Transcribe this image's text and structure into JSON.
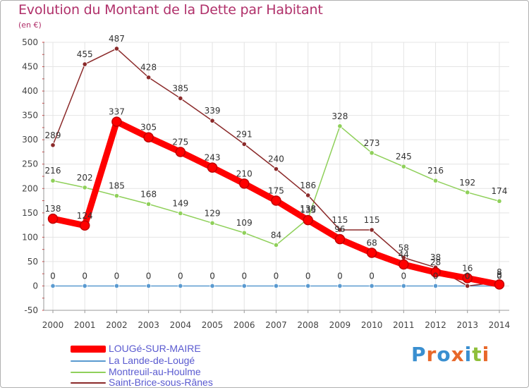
{
  "title": "Evolution du Montant de la Dette par Habitant",
  "subtitle": "(en €)",
  "brand": {
    "text": "Proxiti",
    "colors": [
      "#3a8fd0",
      "#e8682a",
      "#3a8fd0",
      "#e8682a",
      "#3a8fd0",
      "#8fbf3a",
      "#e8682a"
    ]
  },
  "chart_data": {
    "type": "line",
    "title": "Evolution du Montant de la Dette par Habitant",
    "ylabel": "(en €)",
    "xlabel": "",
    "ylim": [
      -50,
      500
    ],
    "yticks": [
      "-50",
      "0",
      "50",
      "100",
      "150",
      "200",
      "250",
      "300",
      "350",
      "400",
      "450",
      "500"
    ],
    "categories": [
      "2000",
      "2001",
      "2002",
      "2003",
      "2004",
      "2005",
      "2006",
      "2007",
      "2008",
      "2009",
      "2010",
      "2011",
      "2012",
      "2013",
      "2014"
    ],
    "legend_position": "bottom-left",
    "series": [
      {
        "name": "LOUGé-SUR-MAIRE",
        "color": "#ff0000",
        "thick": true,
        "values": [
          138,
          124,
          337,
          305,
          275,
          243,
          210,
          175,
          135,
          96,
          68,
          44,
          28,
          16,
          3
        ],
        "labels": [
          "138",
          "124",
          "337",
          "305",
          "275",
          "243",
          "210",
          "175",
          "135",
          "96",
          "68",
          "44",
          "28",
          "16",
          "3"
        ]
      },
      {
        "name": "La Lande-de-Lougé",
        "color": "#5a9ad0",
        "thick": false,
        "values": [
          0,
          0,
          0,
          0,
          0,
          0,
          0,
          0,
          0,
          0,
          0,
          0,
          0,
          0,
          0
        ],
        "labels": [
          "0",
          "0",
          "0",
          "0",
          "0",
          "0",
          "0",
          "0",
          "0",
          "0",
          "0",
          "0",
          "0",
          "0",
          "0"
        ]
      },
      {
        "name": "Montreuil-au-Houlme",
        "color": "#8fd05a",
        "thick": false,
        "values": [
          216,
          202,
          185,
          168,
          149,
          129,
          109,
          84,
          138,
          328,
          273,
          245,
          216,
          192,
          174
        ],
        "labels": [
          "216",
          "202",
          "185",
          "168",
          "149",
          "129",
          "109",
          "84",
          "138",
          "328",
          "273",
          "245",
          "216",
          "192",
          "174"
        ]
      },
      {
        "name": "Saint-Brice-sous-Rânes",
        "color": "#8b2a2a",
        "thick": false,
        "values": [
          289,
          455,
          487,
          428,
          385,
          339,
          291,
          240,
          186,
          115,
          115,
          58,
          38,
          0,
          8
        ],
        "labels": [
          "289",
          "455",
          "487",
          "428",
          "385",
          "339",
          "291",
          "240",
          "186",
          "115",
          "115",
          "58",
          "38",
          "0",
          "8"
        ]
      }
    ]
  }
}
